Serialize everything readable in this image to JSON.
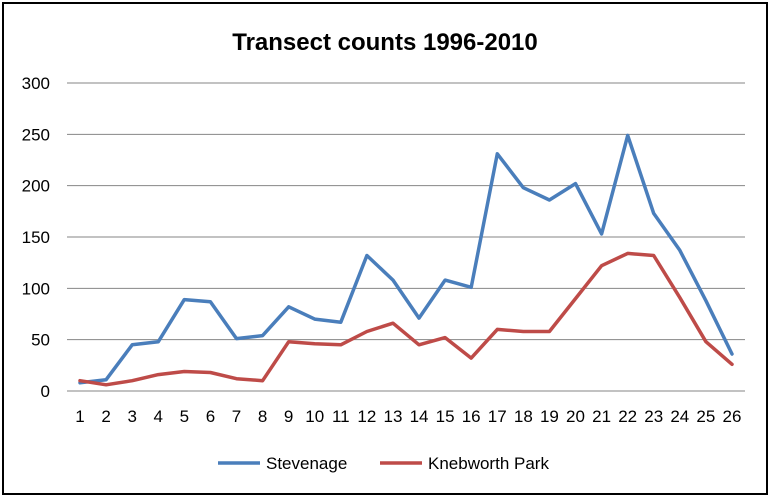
{
  "chart_data": {
    "type": "line",
    "title": "Transect counts 1996-2010",
    "xlabel": "",
    "ylabel": "",
    "categories": [
      "1",
      "2",
      "3",
      "4",
      "5",
      "6",
      "7",
      "8",
      "9",
      "10",
      "11",
      "12",
      "13",
      "14",
      "15",
      "16",
      "17",
      "18",
      "19",
      "20",
      "21",
      "22",
      "23",
      "24",
      "25",
      "26"
    ],
    "ylim": [
      0,
      300
    ],
    "yticks": [
      "0",
      "50",
      "100",
      "150",
      "200",
      "250",
      "300"
    ],
    "grid": true,
    "legend_position": "bottom",
    "series": [
      {
        "name": "Stevenage",
        "color": "#4a7ebb",
        "values": [
          8,
          11,
          45,
          48,
          89,
          87,
          51,
          54,
          82,
          70,
          67,
          132,
          108,
          71,
          108,
          101,
          231,
          198,
          186,
          202,
          153,
          249,
          173,
          137,
          88,
          36
        ]
      },
      {
        "name": "Knebworth Park",
        "color": "#be4b48",
        "values": [
          10,
          6,
          10,
          16,
          19,
          18,
          12,
          10,
          48,
          46,
          45,
          58,
          66,
          45,
          52,
          32,
          60,
          58,
          58,
          90,
          122,
          134,
          132,
          91,
          48,
          26
        ]
      }
    ]
  }
}
